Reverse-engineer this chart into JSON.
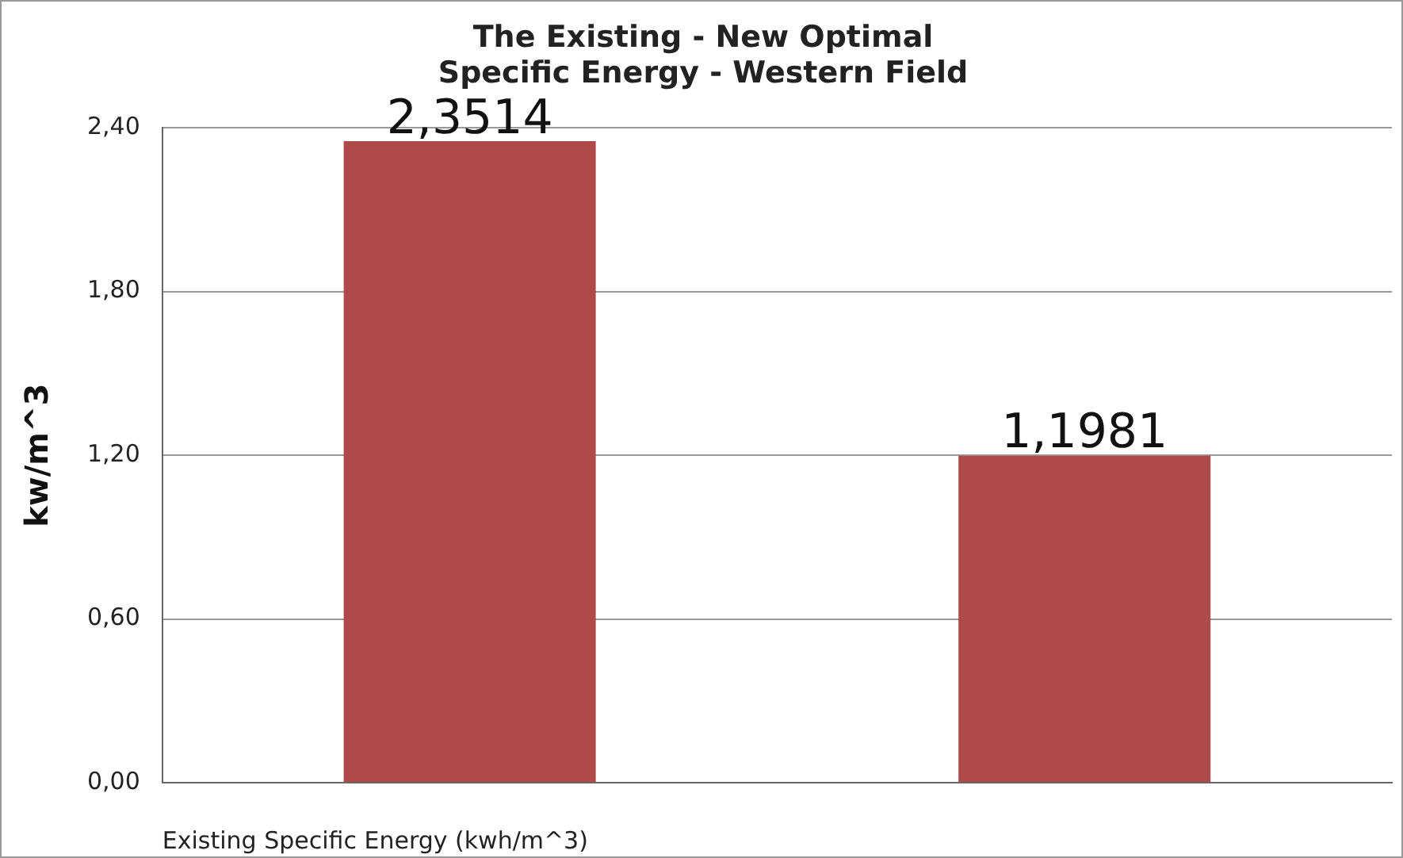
{
  "chart_data": {
    "type": "bar",
    "title": "The Existing - New Optimal\nSpecific Energy - Western Field",
    "xlabel": "Existing Specific Energy (kwh/m^3)",
    "ylabel": "kw/m^3",
    "categories": [
      null,
      null
    ],
    "series": [
      {
        "color": "#b04a4a",
        "values": [
          2.3514,
          1.1981
        ],
        "value_labels": [
          "2,3514",
          "1,1981"
        ]
      }
    ],
    "ylim": [
      0,
      2.4
    ],
    "yticks": [
      {
        "value": 0,
        "label": "0,00"
      },
      {
        "value": 0.6,
        "label": "0,60"
      },
      {
        "value": 1.2,
        "label": "1,20"
      },
      {
        "value": 1.8,
        "label": "1,80"
      },
      {
        "value": 2.4,
        "label": "2,40"
      }
    ],
    "grid": "y",
    "legend": false
  }
}
